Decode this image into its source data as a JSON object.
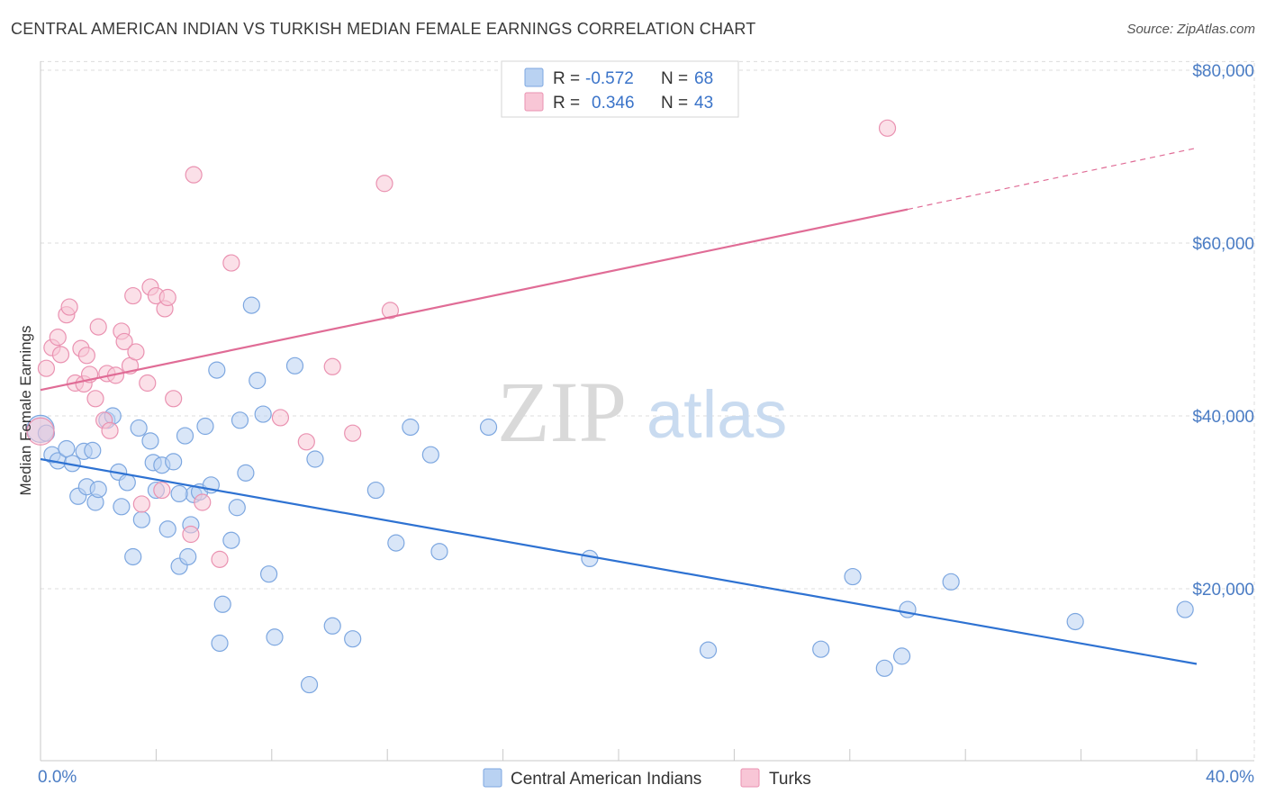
{
  "title": "CENTRAL AMERICAN INDIAN VS TURKISH MEDIAN FEMALE EARNINGS CORRELATION CHART",
  "source": "Source: ZipAtlas.com",
  "watermark": {
    "zip": "ZIP",
    "atlas": "atlas"
  },
  "colors": {
    "blue_fill": "#b9d2f2",
    "blue_stroke": "#7da7e0",
    "blue_line": "#2e72d2",
    "pink_fill": "#f8c6d6",
    "pink_stroke": "#ea92b1",
    "pink_line": "#e06c96",
    "grid": "#dcdcdc",
    "axis_label": "#4a7cc4"
  },
  "legend": {
    "rows": [
      {
        "r_label": "R =",
        "r_value": "-0.572",
        "n_label": "N =",
        "n_value": "68",
        "color": "blue"
      },
      {
        "r_label": "R =",
        "r_value": "0.346",
        "n_label": "N =",
        "n_value": "43",
        "color": "pink"
      }
    ]
  },
  "bottom_legend": [
    "Central American Indians",
    "Turks"
  ],
  "chart_data": {
    "type": "scatter",
    "title": "CENTRAL AMERICAN INDIAN VS TURKISH MEDIAN FEMALE EARNINGS CORRELATION CHART",
    "xlabel": "",
    "ylabel": "Median Female Earnings",
    "xlim": [
      0,
      40
    ],
    "ylim": [
      0,
      82000
    ],
    "x_tick_labels": [
      "0.0%",
      "40.0%"
    ],
    "y_ticks": [
      20000,
      40000,
      60000,
      80000
    ],
    "y_tick_labels": [
      "$20,000",
      "$40,000",
      "$60,000",
      "$80,000"
    ],
    "grid": true,
    "legend_position": "top-center",
    "series": [
      {
        "name": "Central American Indians",
        "color": "blue",
        "points": [
          [
            0.0,
            38500
          ],
          [
            0.2,
            38000
          ],
          [
            0.4,
            35500
          ],
          [
            0.6,
            34800
          ],
          [
            0.9,
            36200
          ],
          [
            1.1,
            34500
          ],
          [
            1.3,
            30700
          ],
          [
            1.5,
            35900
          ],
          [
            1.6,
            31800
          ],
          [
            1.8,
            36000
          ],
          [
            1.9,
            30000
          ],
          [
            2.0,
            31500
          ],
          [
            2.3,
            39500
          ],
          [
            2.5,
            40000
          ],
          [
            2.7,
            33500
          ],
          [
            2.8,
            29500
          ],
          [
            3.0,
            32300
          ],
          [
            3.2,
            23700
          ],
          [
            3.4,
            38600
          ],
          [
            3.5,
            28000
          ],
          [
            3.8,
            37100
          ],
          [
            3.9,
            34600
          ],
          [
            4.0,
            31400
          ],
          [
            4.2,
            34300
          ],
          [
            4.4,
            26900
          ],
          [
            4.6,
            34700
          ],
          [
            4.8,
            22600
          ],
          [
            5.0,
            37700
          ],
          [
            5.1,
            23700
          ],
          [
            5.2,
            27400
          ],
          [
            5.3,
            30900
          ],
          [
            5.5,
            31200
          ],
          [
            5.7,
            38800
          ],
          [
            5.9,
            32000
          ],
          [
            6.1,
            45300
          ],
          [
            6.3,
            18200
          ],
          [
            6.6,
            25600
          ],
          [
            6.8,
            29400
          ],
          [
            6.9,
            39500
          ],
          [
            7.1,
            33400
          ],
          [
            7.3,
            52800
          ],
          [
            7.5,
            44100
          ],
          [
            7.7,
            40200
          ],
          [
            7.9,
            21700
          ],
          [
            8.1,
            14400
          ],
          [
            8.8,
            45800
          ],
          [
            9.3,
            8900
          ],
          [
            9.5,
            35000
          ],
          [
            10.1,
            15700
          ],
          [
            10.8,
            14200
          ],
          [
            11.6,
            31400
          ],
          [
            12.3,
            25300
          ],
          [
            12.8,
            38700
          ],
          [
            13.5,
            35500
          ],
          [
            13.8,
            24300
          ],
          [
            15.5,
            38700
          ],
          [
            19.0,
            23500
          ],
          [
            23.1,
            12900
          ],
          [
            27.0,
            13000
          ],
          [
            28.1,
            21400
          ],
          [
            29.2,
            10800
          ],
          [
            29.8,
            12200
          ],
          [
            30.0,
            17600
          ],
          [
            31.5,
            20800
          ],
          [
            35.8,
            16200
          ],
          [
            39.6,
            17600
          ],
          [
            6.2,
            13700
          ],
          [
            4.8,
            31000
          ]
        ]
      },
      {
        "name": "Turks",
        "color": "pink",
        "points": [
          [
            0.0,
            38200
          ],
          [
            0.2,
            45500
          ],
          [
            0.4,
            47900
          ],
          [
            0.6,
            49100
          ],
          [
            0.7,
            47100
          ],
          [
            0.9,
            51700
          ],
          [
            1.0,
            52600
          ],
          [
            1.2,
            43800
          ],
          [
            1.4,
            47800
          ],
          [
            1.5,
            43700
          ],
          [
            1.6,
            47000
          ],
          [
            1.7,
            44800
          ],
          [
            1.9,
            42000
          ],
          [
            2.0,
            50300
          ],
          [
            2.2,
            39500
          ],
          [
            2.3,
            44900
          ],
          [
            2.4,
            38300
          ],
          [
            2.6,
            44700
          ],
          [
            2.8,
            49800
          ],
          [
            2.9,
            48600
          ],
          [
            3.1,
            45800
          ],
          [
            3.2,
            53900
          ],
          [
            3.3,
            47400
          ],
          [
            3.5,
            29800
          ],
          [
            3.7,
            43800
          ],
          [
            3.8,
            54900
          ],
          [
            4.0,
            53900
          ],
          [
            4.2,
            31400
          ],
          [
            4.3,
            52400
          ],
          [
            4.4,
            53700
          ],
          [
            4.6,
            42000
          ],
          [
            5.2,
            26300
          ],
          [
            5.3,
            67900
          ],
          [
            5.6,
            30000
          ],
          [
            6.2,
            23400
          ],
          [
            6.6,
            57700
          ],
          [
            8.3,
            39800
          ],
          [
            9.2,
            37000
          ],
          [
            10.1,
            45700
          ],
          [
            10.8,
            38000
          ],
          [
            11.9,
            66900
          ],
          [
            12.1,
            52200
          ],
          [
            29.3,
            73300
          ]
        ]
      }
    ],
    "trend_lines": [
      {
        "series": "Central American Indians",
        "x": [
          0,
          40
        ],
        "y": [
          35000,
          11300
        ],
        "dashed_from": null
      },
      {
        "series": "Turks",
        "x": [
          0,
          30
        ],
        "y": [
          43000,
          63900
        ],
        "extension_x": [
          30,
          40
        ],
        "extension_y": [
          63900,
          71000
        ]
      }
    ]
  }
}
